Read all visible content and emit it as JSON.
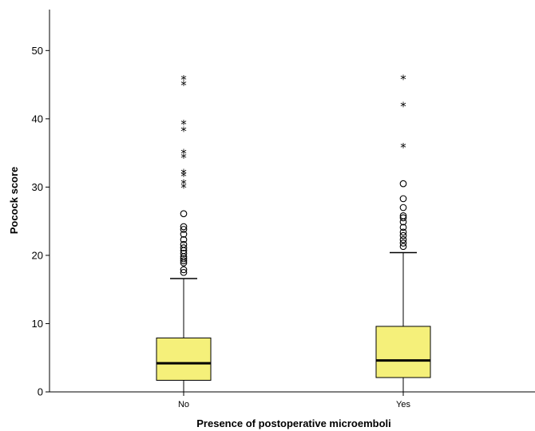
{
  "chart_data": {
    "type": "boxplot",
    "xlabel": "Presence of postoperative microemboli",
    "ylabel": "Pocock score",
    "ylim": [
      0,
      56
    ],
    "yticks": [
      0,
      10,
      20,
      30,
      40,
      50
    ],
    "categories": [
      "No",
      "Yes"
    ],
    "colors": {
      "box_fill": "#f5f07a",
      "stroke": "#000000"
    },
    "boxes": [
      {
        "category": "No",
        "min": 0,
        "q1": 1.7,
        "median": 4.2,
        "q3": 7.9,
        "max": 16.6,
        "outliers": [
          17.5,
          17.9,
          18.9,
          19.2,
          19.5,
          19.8,
          20.3,
          20.7,
          21.1,
          21.6,
          22.3,
          23.1,
          23.8,
          24.2,
          26.1
        ],
        "extremes": [
          30.0,
          30.6,
          31.7,
          32.1,
          34.4,
          35.0,
          38.3,
          39.3,
          45.0,
          45.8
        ]
      },
      {
        "category": "Yes",
        "min": 0,
        "q1": 2.1,
        "median": 4.6,
        "q3": 9.6,
        "max": 20.4,
        "outliers": [
          21.3,
          21.8,
          22.3,
          22.9,
          23.4,
          24.1,
          24.9,
          25.5,
          25.8,
          27.0,
          28.3,
          30.5
        ],
        "extremes": [
          35.9,
          41.9,
          45.9
        ]
      }
    ]
  }
}
